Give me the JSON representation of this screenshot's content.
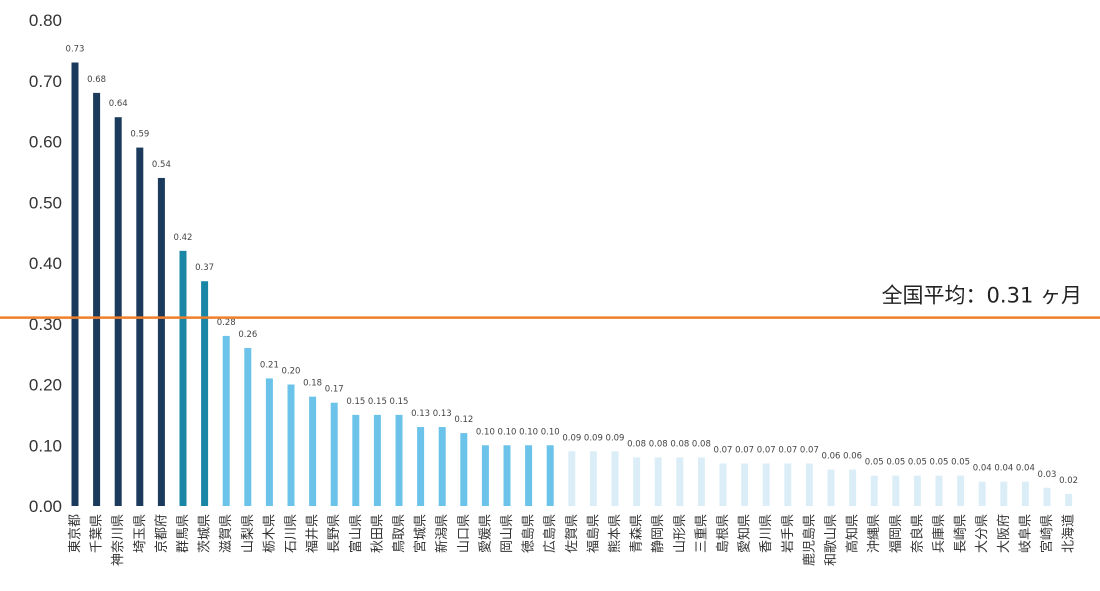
{
  "chart_data": {
    "type": "bar",
    "title": "",
    "xlabel": "",
    "ylabel": "",
    "ylim": [
      0,
      0.8
    ],
    "yticks": [
      "0.00",
      "0.10",
      "0.20",
      "0.30",
      "0.40",
      "0.50",
      "0.60",
      "0.70",
      "0.80"
    ],
    "grid": false,
    "categories": [
      "東京都",
      "千葉県",
      "神奈川県",
      "埼玉県",
      "京都府",
      "群馬県",
      "茨城県",
      "滋賀県",
      "山梨県",
      "栃木県",
      "石川県",
      "福井県",
      "長野県",
      "富山県",
      "秋田県",
      "鳥取県",
      "宮城県",
      "新潟県",
      "山口県",
      "愛媛県",
      "岡山県",
      "徳島県",
      "広島県",
      "佐賀県",
      "福島県",
      "熊本県",
      "青森県",
      "静岡県",
      "山形県",
      "三重県",
      "島根県",
      "愛知県",
      "香川県",
      "岩手県",
      "鹿児島県",
      "和歌山県",
      "高知県",
      "沖縄県",
      "福岡県",
      "奈良県",
      "兵庫県",
      "長崎県",
      "大分県",
      "大阪府",
      "岐阜県",
      "宮崎県",
      "北海道"
    ],
    "values": [
      0.73,
      0.68,
      0.64,
      0.59,
      0.54,
      0.42,
      0.37,
      0.28,
      0.26,
      0.21,
      0.2,
      0.18,
      0.17,
      0.15,
      0.15,
      0.15,
      0.13,
      0.13,
      0.12,
      0.1,
      0.1,
      0.1,
      0.1,
      0.09,
      0.09,
      0.09,
      0.08,
      0.08,
      0.08,
      0.08,
      0.07,
      0.07,
      0.07,
      0.07,
      0.07,
      0.06,
      0.06,
      0.05,
      0.05,
      0.05,
      0.05,
      0.05,
      0.04,
      0.04,
      0.04,
      0.03,
      0.02
    ],
    "value_labels": [
      "0.73",
      "0.68",
      "0.64",
      "0.59",
      "0.54",
      "0.42",
      "0.37",
      "0.28",
      "0.26",
      "0.21",
      "0.20",
      "0.18",
      "0.17",
      "0.15",
      "0.15",
      "0.15",
      "0.13",
      "0.13",
      "0.12",
      "0.10",
      "0.10",
      "0.10",
      "0.10",
      "0.09",
      "0.09",
      "0.09",
      "0.08",
      "0.08",
      "0.08",
      "0.08",
      "0.07",
      "0.07",
      "0.07",
      "0.07",
      "0.07",
      "0.06",
      "0.06",
      "0.05",
      "0.05",
      "0.05",
      "0.05",
      "0.05",
      "0.04",
      "0.04",
      "0.04",
      "0.03",
      "0.02"
    ],
    "bar_color_groups": [
      {
        "from": 0,
        "to": 4,
        "color": "#1b3a5c"
      },
      {
        "from": 5,
        "to": 6,
        "color": "#1a86a5"
      },
      {
        "from": 7,
        "to": 22,
        "color": "#6cc3ea"
      },
      {
        "from": 23,
        "to": 46,
        "color": "#dbeef8"
      }
    ],
    "reference_line": {
      "value": 0.31,
      "label": "全国平均：0.31 ヶ月",
      "color": "#ef7f2b"
    }
  }
}
